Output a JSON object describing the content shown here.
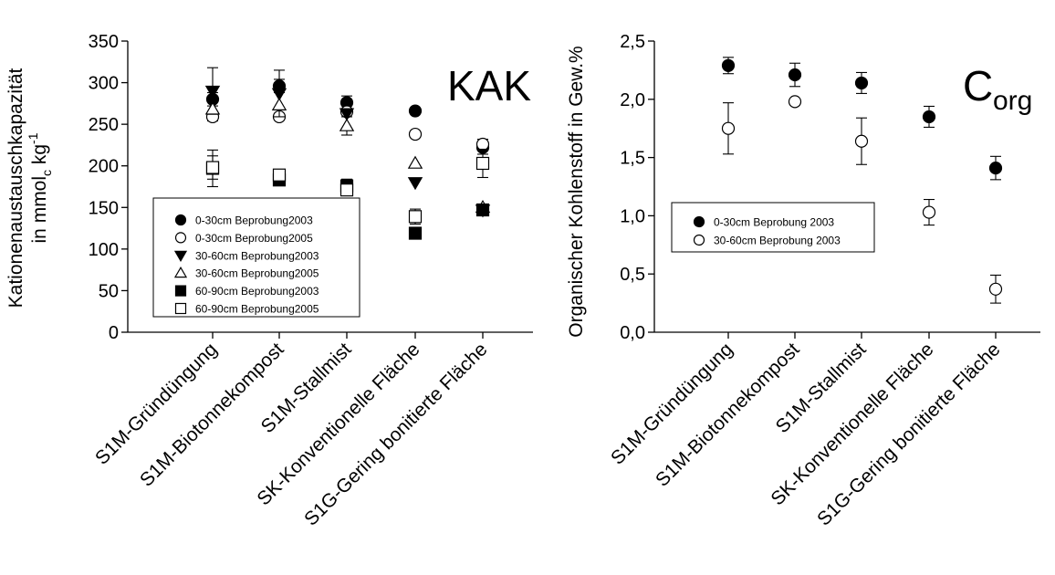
{
  "chart_data": [
    {
      "type": "scatter",
      "title": "KAK",
      "ylabel_line1": "Kationenaustauschkapazität",
      "ylabel_line2_parts": [
        "in mmol",
        "c",
        " kg",
        "-1"
      ],
      "ylim": [
        0,
        350
      ],
      "yticks": [
        "0",
        "50",
        "100",
        "150",
        "200",
        "250",
        "300",
        "350"
      ],
      "categories": [
        "S1M-Gründüngung",
        "S1M-Biotonnekompost",
        "S1M-Stallmist",
        "SK-Konventionelle Fläche",
        "S1G-Gering bonitierte Fläche"
      ],
      "legend_position": "lower-left",
      "series": [
        {
          "name": "0-30cm Beprobung2003",
          "marker": "circle",
          "fill": "#000000",
          "values": [
            280,
            296,
            276,
            266,
            222
          ],
          "errors": [
            8,
            8,
            8,
            3,
            8
          ]
        },
        {
          "name": "0-30cm Beprobung2005",
          "marker": "circle",
          "fill": "#ffffff",
          "values": [
            259,
            259,
            265,
            238,
            226
          ],
          "errors": [
            5,
            0,
            0,
            0,
            6
          ]
        },
        {
          "name": "30-60cm Beprobung2003",
          "marker": "triangle-down",
          "fill": "#000000",
          "values": [
            290,
            287,
            263,
            180,
            147
          ],
          "errors": [
            28,
            28,
            0,
            0,
            0
          ]
        },
        {
          "name": "30-60cm Beprobung2005",
          "marker": "triangle-up",
          "fill": "#ffffff",
          "values": [
            268,
            273,
            248,
            203,
            150
          ],
          "errors": [
            0,
            0,
            11,
            0,
            0
          ]
        },
        {
          "name": "60-90cm Beprobung2003",
          "marker": "square",
          "fill": "#000000",
          "values": [
            197,
            183,
            176,
            119,
            147
          ],
          "errors": [
            22,
            0,
            8,
            0,
            0
          ]
        },
        {
          "name": "60-90cm Beprobung2005",
          "marker": "square",
          "fill": "#ffffff",
          "values": [
            198,
            189,
            171,
            139,
            203
          ],
          "errors": [
            14,
            0,
            0,
            9,
            17
          ]
        }
      ]
    },
    {
      "type": "scatter",
      "title_main": "C",
      "title_sub": "org",
      "ylabel": "Organischer Kohlenstoff in Gew.%",
      "ylim": [
        0,
        2.5
      ],
      "yticks": [
        "0,0",
        "0,5",
        "1,0",
        "1,5",
        "2,0",
        "2,5"
      ],
      "categories": [
        "S1M-Gründüngung",
        "S1M-Biotonnekompost",
        "S1M-Stallmist",
        "SK-Konventionelle Fläche",
        "S1G-Gering bonitierte Fläche"
      ],
      "legend_position": "left",
      "series": [
        {
          "name": "0-30cm Beprobung 2003",
          "marker": "circle",
          "fill": "#000000",
          "values": [
            2.29,
            2.21,
            2.14,
            1.85,
            1.41
          ],
          "errors": [
            0.07,
            0.1,
            0.09,
            0.09,
            0.1
          ]
        },
        {
          "name": "30-60cm Beprobung 2003",
          "marker": "circle",
          "fill": "#ffffff",
          "values": [
            1.75,
            1.98,
            1.64,
            1.03,
            0.37
          ],
          "errors": [
            0.22,
            0,
            0.2,
            0.11,
            0.12
          ]
        }
      ]
    }
  ]
}
